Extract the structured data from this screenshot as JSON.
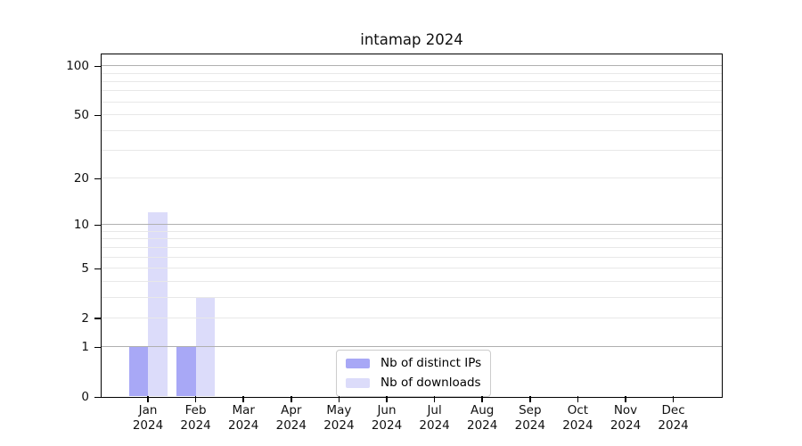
{
  "chart_data": {
    "type": "bar",
    "title": "intamap 2024",
    "categories": [
      "Jan",
      "Feb",
      "Mar",
      "Apr",
      "May",
      "Jun",
      "Jul",
      "Aug",
      "Sep",
      "Oct",
      "Nov",
      "Dec"
    ],
    "category_sublabel": "2024",
    "series": [
      {
        "name": "Nb of distinct IPs",
        "color": "#a8a8f6",
        "values": [
          1,
          1,
          0,
          0,
          0,
          0,
          0,
          0,
          0,
          0,
          0,
          0
        ]
      },
      {
        "name": "Nb of downloads",
        "color": "#dcdcfa",
        "values": [
          12,
          3,
          0,
          0,
          0,
          0,
          0,
          0,
          0,
          0,
          0,
          0
        ]
      }
    ],
    "xlabel": "",
    "ylabel": "",
    "yscale": "log1p",
    "ylim": [
      0,
      116.5
    ],
    "yticks": [
      0,
      1,
      2,
      5,
      10,
      20,
      50,
      100
    ],
    "grid": {
      "major": [
        1,
        10,
        100
      ],
      "minor": [
        2,
        3,
        4,
        5,
        6,
        7,
        8,
        9,
        20,
        30,
        40,
        50,
        60,
        70,
        80,
        90
      ],
      "major_color": "#b0b0b0",
      "minor_color": "#e8e8e8"
    },
    "legend_position": "lower center inside",
    "axis_color": "#000000"
  }
}
